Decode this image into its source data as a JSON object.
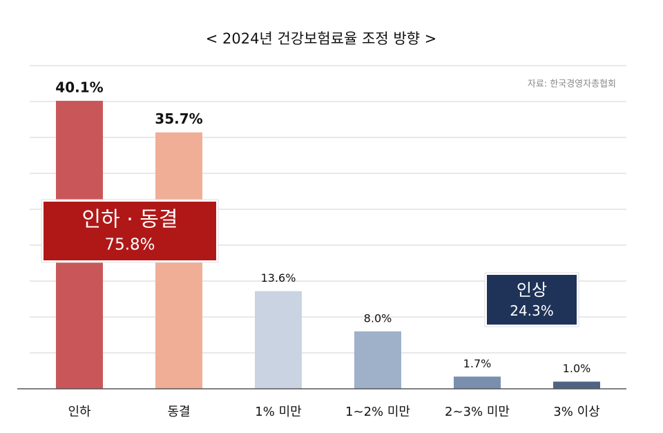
{
  "chart_data": {
    "type": "bar",
    "title": "< 2024년 건강보험료율 조정 방향 >",
    "source": "자료: 한국경영자총협회",
    "categories": [
      "인하",
      "동결",
      "1% 미만",
      "1∼2% 미만",
      "2∼3% 미만",
      "3% 이상"
    ],
    "values": [
      40.1,
      35.7,
      13.6,
      8.0,
      1.7,
      1.0
    ],
    "value_labels": [
      "40.1%",
      "35.7%",
      "13.6%",
      "8.0%",
      "1.7%",
      "1.0%"
    ],
    "colors": [
      "#c9575a",
      "#f0ae96",
      "#c9d3e2",
      "#9fb0c9",
      "#7a8fae",
      "#4f6483"
    ],
    "ylim": [
      0,
      45
    ],
    "yticks": [
      0,
      5,
      10,
      15,
      20,
      25,
      30,
      35,
      40,
      45
    ],
    "grid": true,
    "annotations": [
      {
        "heading": "인하 · 동결",
        "subtext": "75.8%",
        "color": "#b01818"
      },
      {
        "heading": "인상",
        "subtext": "24.3%",
        "color": "#1f3358"
      }
    ]
  }
}
